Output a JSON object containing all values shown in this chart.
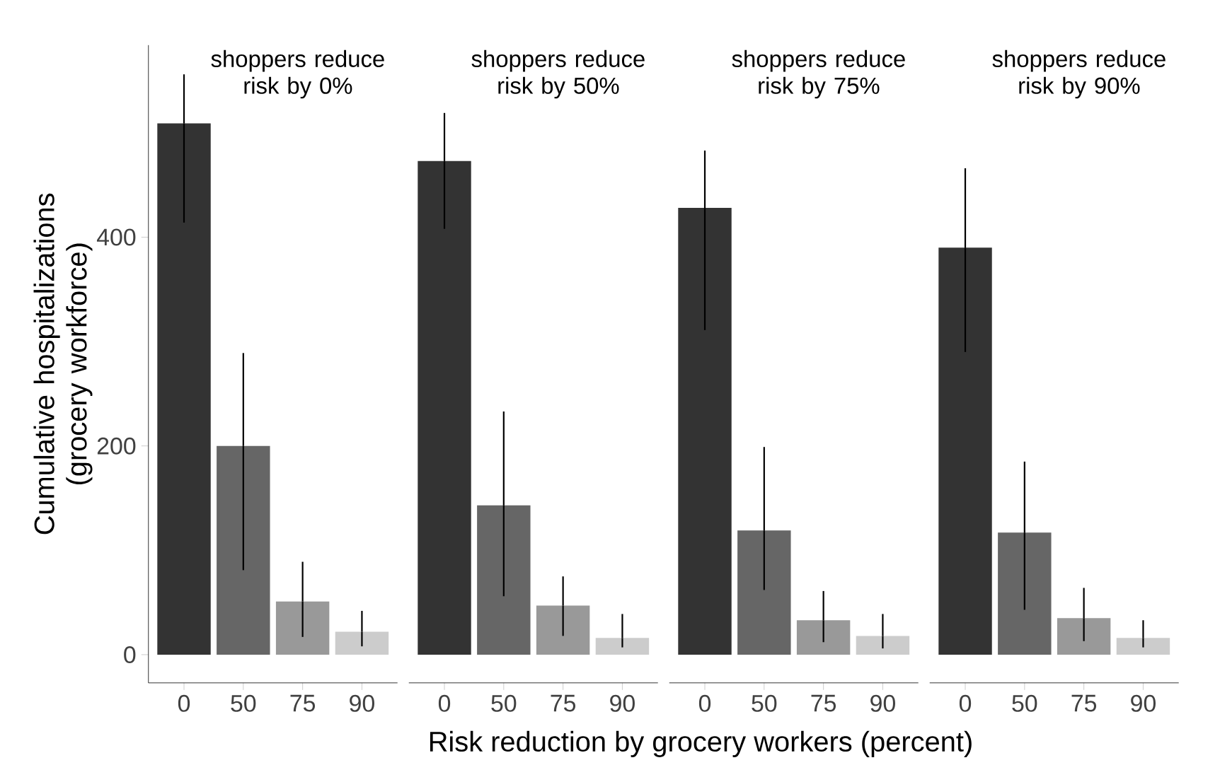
{
  "chart_data": [
    {
      "type": "bar",
      "title": "shoppers reduce risk by 0%",
      "xlabel": "Risk reduction by grocery workers (percent)",
      "ylabel": "Cumulative hospitalizations (grocery workforce)",
      "categories": [
        "0",
        "50",
        "75",
        "90"
      ],
      "values": [
        509,
        200,
        51,
        22
      ],
      "errors": [
        [
          414,
          556
        ],
        [
          81,
          289
        ],
        [
          17,
          89
        ],
        [
          8,
          42
        ]
      ],
      "colors": [
        "#333333",
        "#666666",
        "#999999",
        "#cccccc"
      ],
      "ylim": [
        -27,
        584
      ],
      "yticks": [
        0,
        200,
        400
      ],
      "grid": false
    },
    {
      "type": "bar",
      "title": "shoppers reduce risk by 50%",
      "categories": [
        "0",
        "50",
        "75",
        "90"
      ],
      "values": [
        473,
        143,
        47,
        16
      ],
      "errors": [
        [
          408,
          519
        ],
        [
          56,
          233
        ],
        [
          18,
          75
        ],
        [
          7,
          39
        ]
      ],
      "colors": [
        "#333333",
        "#666666",
        "#999999",
        "#cccccc"
      ],
      "yticks": [
        0,
        200,
        400
      ],
      "tick_labels": "x",
      "grid": false
    },
    {
      "type": "bar",
      "title": "shoppers reduce risk by 75%",
      "categories": [
        "0",
        "50",
        "75",
        "90"
      ],
      "values": [
        428,
        119,
        33,
        18
      ],
      "errors": [
        [
          311,
          483
        ],
        [
          62,
          199
        ],
        [
          12,
          61
        ],
        [
          6,
          39
        ]
      ],
      "colors": [
        "#333333",
        "#666666",
        "#999999",
        "#cccccc"
      ],
      "yticks": [
        0,
        200,
        400
      ],
      "tick_labels": "x",
      "grid": false
    },
    {
      "type": "bar",
      "title": "shoppers reduce risk by 90%",
      "categories": [
        "0",
        "50",
        "75",
        "90"
      ],
      "values": [
        390,
        117,
        35,
        16
      ],
      "errors": [
        [
          290,
          466
        ],
        [
          43,
          185
        ],
        [
          13,
          64
        ],
        [
          7,
          33
        ]
      ],
      "colors": [
        "#333333",
        "#666666",
        "#999999",
        "#cccccc"
      ],
      "yticks": [
        0,
        200,
        400
      ],
      "tick_labels": "x",
      "grid": false
    }
  ]
}
